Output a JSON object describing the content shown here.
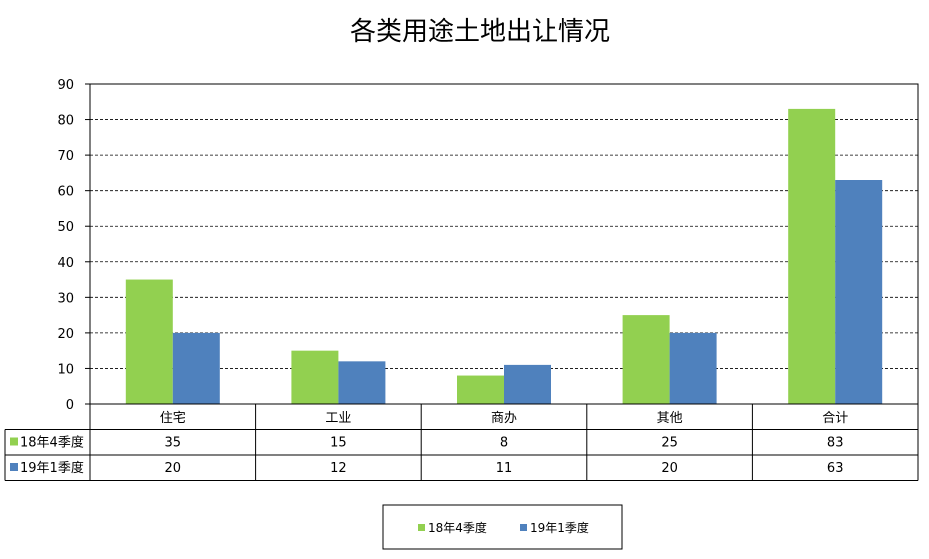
{
  "chart_data": {
    "type": "bar",
    "title": "各类用途土地出让情况",
    "categories": [
      "住宅",
      "工业",
      "商办",
      "其他",
      "合计"
    ],
    "series": [
      {
        "name": "18年4季度",
        "color": "#92d050",
        "values": [
          35,
          15,
          8,
          25,
          83
        ]
      },
      {
        "name": "19年1季度",
        "color": "#4f81bd",
        "values": [
          20,
          12,
          11,
          20,
          63
        ]
      }
    ],
    "ylim": [
      0,
      90
    ],
    "yticks": [
      0,
      10,
      20,
      30,
      40,
      50,
      60,
      70,
      80,
      90
    ],
    "grid": "horizontal-dashed",
    "legend_position": "bottom",
    "data_table": true
  }
}
